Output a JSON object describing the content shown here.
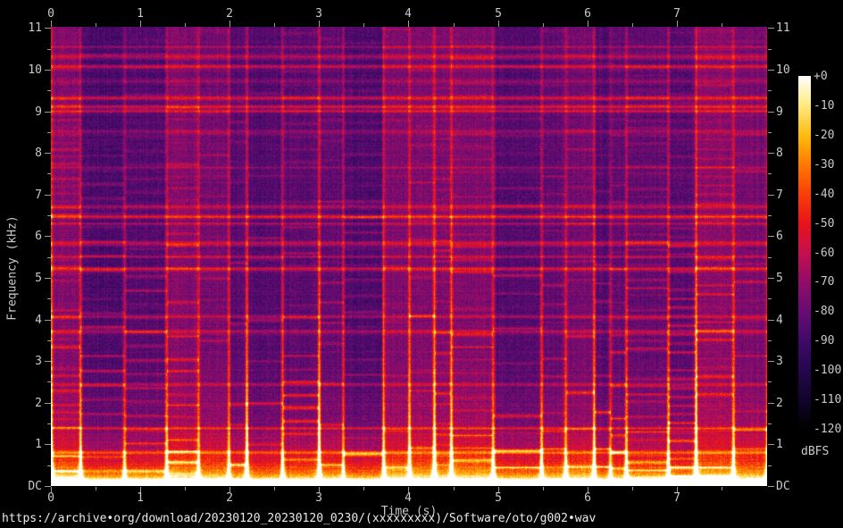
{
  "window": {
    "background": "#000000"
  },
  "title_url": "https://archive•org/download/20230120_20230120_0230/(xxxxxxxxx)/Software/oto/g002•wav",
  "colors": {
    "tick_text": "#c9c9c9",
    "tick_mark": "#9a9a9a",
    "url_text": "#eaeaea",
    "background": "#000000"
  },
  "chart_data": {
    "type": "heatmap",
    "subtype": "audio-spectrogram",
    "xlabel": "Time (s)",
    "ylabel": "Frequency (kHz)",
    "x_range_s": [
      0,
      8.01
    ],
    "y_range_khz": [
      0,
      11.03
    ],
    "z_unit_label": "dBFS",
    "z_range_db": [
      -120,
      0
    ],
    "grid": false,
    "legend_position": "right-colorbar",
    "x_ticks": [
      {
        "label": "0",
        "s": 0
      },
      {
        "label": "1",
        "s": 1
      },
      {
        "label": "2",
        "s": 2
      },
      {
        "label": "3",
        "s": 3
      },
      {
        "label": "4",
        "s": 4
      },
      {
        "label": "5",
        "s": 5
      },
      {
        "label": "6",
        "s": 6
      },
      {
        "label": "7",
        "s": 7
      }
    ],
    "x_minor_ticks_s": [
      0.5,
      1.5,
      2.5,
      3.5,
      4.5,
      5.5,
      6.5,
      7.5
    ],
    "y_ticks": [
      {
        "label": "11",
        "khz": 11
      },
      {
        "label": "10",
        "khz": 10
      },
      {
        "label": "9",
        "khz": 9
      },
      {
        "label": "8",
        "khz": 8
      },
      {
        "label": "7",
        "khz": 7
      },
      {
        "label": "6",
        "khz": 6
      },
      {
        "label": "5",
        "khz": 5
      },
      {
        "label": "4",
        "khz": 4
      },
      {
        "label": "3",
        "khz": 3
      },
      {
        "label": "2",
        "khz": 2
      },
      {
        "label": "1",
        "khz": 1
      },
      {
        "label": "DC",
        "khz": 0
      }
    ],
    "y_minor_ticks_khz": [
      0.5,
      1.5,
      2.5,
      3.5,
      4.5,
      5.5,
      6.5,
      7.5,
      8.5,
      9.5,
      10.5
    ],
    "colorbar_ticks": [
      {
        "label": "+0",
        "db": 0
      },
      {
        "label": "-10",
        "db": -10
      },
      {
        "label": "-20",
        "db": -20
      },
      {
        "label": "-30",
        "db": -30
      },
      {
        "label": "-40",
        "db": -40
      },
      {
        "label": "-50",
        "db": -50
      },
      {
        "label": "-60",
        "db": -60
      },
      {
        "label": "-70",
        "db": -70
      },
      {
        "label": "-80",
        "db": -80
      },
      {
        "label": "-90",
        "db": -90
      },
      {
        "label": "-100",
        "db": -100
      },
      {
        "label": "-110",
        "db": -110
      },
      {
        "label": "-120",
        "db": -120
      }
    ],
    "content_summary": "Music spectrogram over 0-8 s and 0-11 kHz: purple broadband noise background (~-75 to -90 dBFS) with block-like segments, horizontal harmonic lines (strong red lines near 6.5 kHz and 9.1-9.3 kHz), quasi-periodic vertical note onsets every ~0.2-0.5 s that flare orange/yellow toward low frequencies, and a continuous near-0 dBFS white-yellow band below ~0.2 kHz at the bottom.",
    "render": {
      "seed": 1337,
      "duration_s": 8.01,
      "freq_max_khz": 11.03,
      "base_level": 0.33,
      "segment_min_s": 0.16,
      "segment_max_s": 0.55,
      "speckle": 0.13,
      "palette": [
        [
          0.0,
          0,
          0,
          0
        ],
        [
          0.08,
          16,
          4,
          42
        ],
        [
          0.17,
          38,
          7,
          78
        ],
        [
          0.25,
          64,
          10,
          104
        ],
        [
          0.33,
          102,
          12,
          114
        ],
        [
          0.42,
          148,
          12,
          104
        ],
        [
          0.5,
          196,
          16,
          78
        ],
        [
          0.58,
          232,
          18,
          26
        ],
        [
          0.67,
          249,
          66,
          8
        ],
        [
          0.75,
          254,
          122,
          4
        ],
        [
          0.83,
          255,
          186,
          14
        ],
        [
          0.92,
          255,
          235,
          130
        ],
        [
          1.0,
          255,
          255,
          255
        ]
      ],
      "global_lines": [
        {
          "khz": 9.3,
          "strength": 0.2,
          "width": 1.1
        },
        {
          "khz": 9.12,
          "strength": 0.26,
          "width": 1.3
        },
        {
          "khz": 6.47,
          "strength": 0.28,
          "width": 1.4
        },
        {
          "khz": 6.3,
          "strength": 0.16,
          "width": 1.0
        },
        {
          "khz": 5.18,
          "strength": 0.14,
          "width": 1.0
        },
        {
          "khz": 2.44,
          "strength": 0.16,
          "width": 1.1
        },
        {
          "khz": 10.55,
          "strength": 0.14,
          "width": 1.0
        },
        {
          "khz": 7.65,
          "strength": 0.12,
          "width": 1.0
        }
      ]
    }
  }
}
